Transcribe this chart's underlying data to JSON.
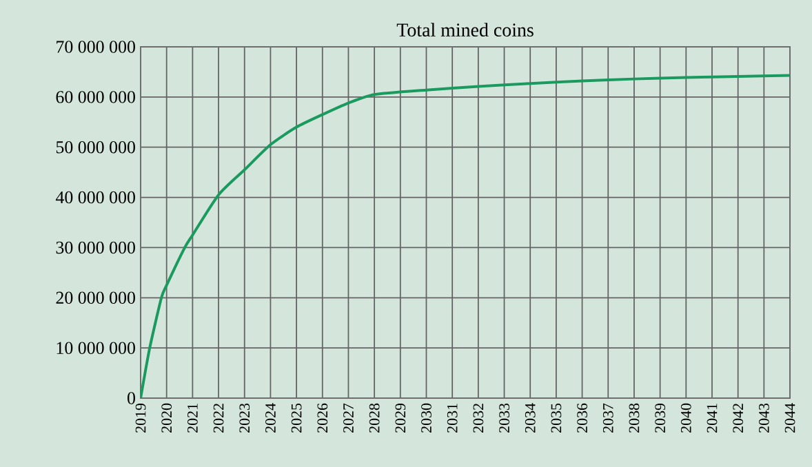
{
  "chart_data": {
    "type": "line",
    "title": "Total mined coins",
    "x": [
      2019,
      2019.35,
      2019.8,
      2020,
      2020.7,
      2021,
      2022,
      2023,
      2024,
      2025,
      2026,
      2027,
      2028,
      2030,
      2032,
      2034,
      2036,
      2038,
      2040,
      2042,
      2044
    ],
    "series": [
      {
        "color": "#1a9a5e",
        "values": [
          0,
          10000000,
          20000000,
          22500000,
          30000000,
          32500000,
          40500000,
          45500000,
          50500000,
          54000000,
          56500000,
          58800000,
          60500000,
          61400000,
          62100000,
          62700000,
          63200000,
          63600000,
          63900000,
          64100000,
          64300000
        ]
      }
    ],
    "xlim": [
      2019,
      2044
    ],
    "xticks": [
      2019,
      2020,
      2021,
      2022,
      2023,
      2024,
      2025,
      2026,
      2027,
      2028,
      2029,
      2030,
      2031,
      2032,
      2033,
      2034,
      2035,
      2036,
      2037,
      2038,
      2039,
      2040,
      2041,
      2042,
      2043,
      2044
    ],
    "ylim": [
      0,
      70000000
    ],
    "yticks": [
      {
        "value": 0,
        "label": "0"
      },
      {
        "value": 10000000,
        "label": "10 000 000"
      },
      {
        "value": 20000000,
        "label": "20 000 000"
      },
      {
        "value": 30000000,
        "label": "30 000 000"
      },
      {
        "value": 40000000,
        "label": "40 000 000"
      },
      {
        "value": 50000000,
        "label": "50 000 000"
      },
      {
        "value": 60000000,
        "label": "60 000 000"
      },
      {
        "value": 70000000,
        "label": "70 000 000"
      }
    ],
    "grid": true,
    "marker": "none",
    "line_style": "solid"
  }
}
